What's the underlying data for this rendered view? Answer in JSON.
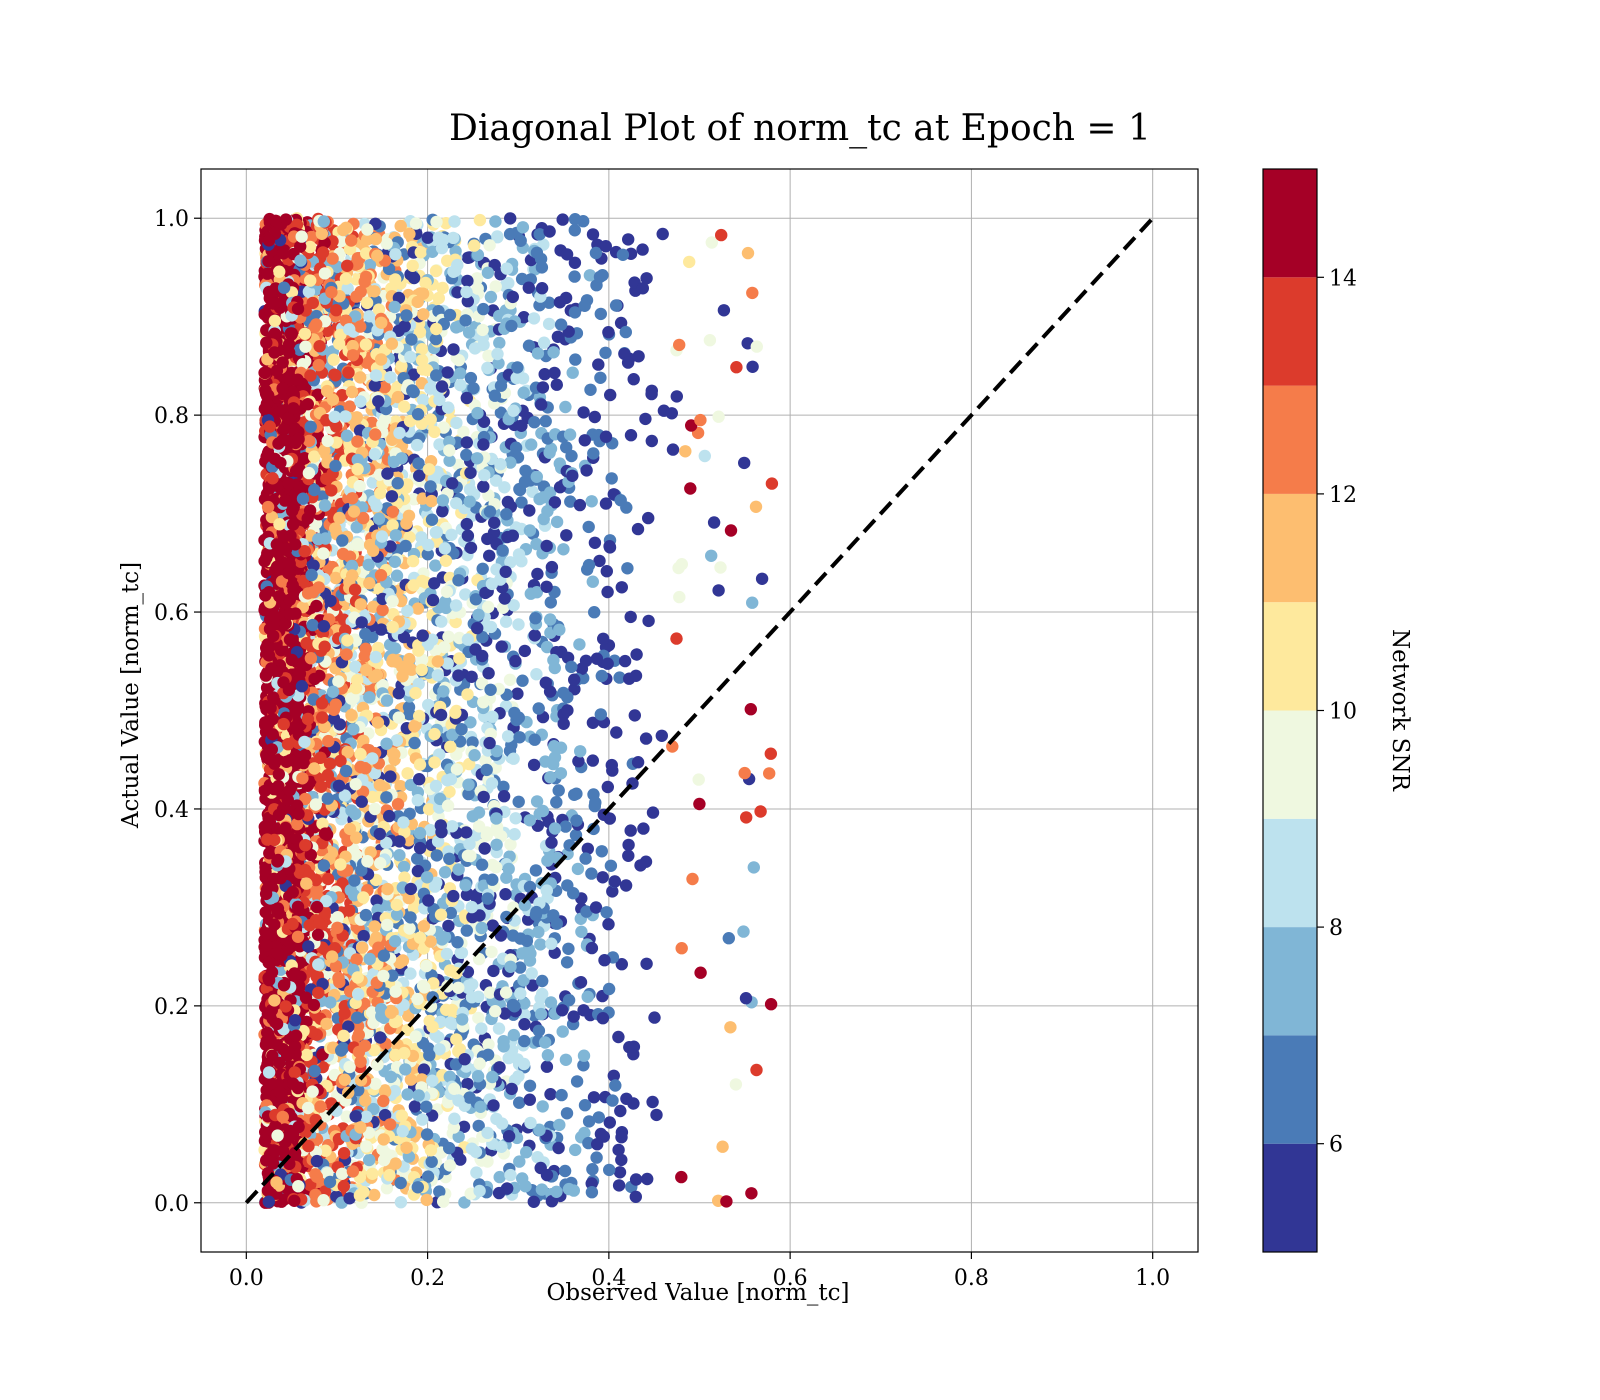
{
  "chart_data": {
    "type": "scatter",
    "title": "Diagonal Plot of norm_tc at Epoch = 1",
    "xlabel": "Observed Value [norm_tc]",
    "ylabel": "Actual Value [norm_tc]",
    "xlim": [
      -0.05,
      1.05
    ],
    "ylim": [
      -0.05,
      1.05
    ],
    "xticks": [
      "0.0",
      "0.2",
      "0.4",
      "0.6",
      "0.8",
      "1.0"
    ],
    "yticks": [
      "0.0",
      "0.2",
      "0.4",
      "0.6",
      "0.8",
      "1.0"
    ],
    "grid": true,
    "reference_line": {
      "style": "dashed",
      "color": "#000000",
      "x": [
        0,
        1
      ],
      "y": [
        0,
        1
      ]
    },
    "point_distribution": {
      "x_range": [
        0.02,
        0.58
      ],
      "y_range": [
        0.0,
        1.0
      ],
      "dense_high_snr_band_x": [
        0.02,
        0.06
      ],
      "approx_points_shown": 6000
    },
    "colorbar": {
      "label": "Network SNR",
      "range": [
        5,
        15
      ],
      "ticks": [
        "6",
        "8",
        "10",
        "12",
        "14"
      ],
      "bands": [
        {
          "from": 5,
          "to": 6,
          "color": "#313695"
        },
        {
          "from": 6,
          "to": 7,
          "color": "#4a7bb7"
        },
        {
          "from": 7,
          "to": 8,
          "color": "#80b6d6"
        },
        {
          "from": 8,
          "to": 9,
          "color": "#bde2ee"
        },
        {
          "from": 9,
          "to": 10,
          "color": "#eff8e0"
        },
        {
          "from": 10,
          "to": 11,
          "color": "#fee99d"
        },
        {
          "from": 11,
          "to": 12,
          "color": "#fdbe70"
        },
        {
          "from": 12,
          "to": 13,
          "color": "#f57c4a"
        },
        {
          "from": 13,
          "to": 14,
          "color": "#dc3b2c"
        },
        {
          "from": 14,
          "to": 15,
          "color": "#a50026"
        }
      ]
    }
  }
}
